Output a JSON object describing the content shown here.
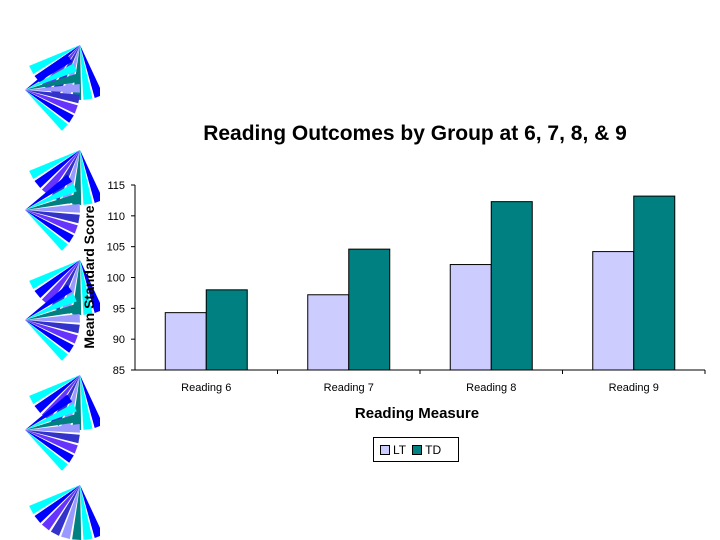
{
  "chart_data": {
    "type": "bar",
    "title": "Reading Outcomes by Group at 6, 7, 8, & 9",
    "xlabel": "Reading Measure",
    "ylabel": "Mean Standard Score",
    "categories": [
      "Reading 6",
      "Reading 7",
      "Reading 8",
      "Reading 9"
    ],
    "series": [
      {
        "name": "LT",
        "values": [
          94.3,
          97.2,
          102.1,
          104.2
        ],
        "color": "#ccccff"
      },
      {
        "name": "TD",
        "values": [
          98.0,
          104.6,
          112.3,
          113.2
        ],
        "color": "#008080"
      }
    ],
    "ylim": [
      85,
      115
    ],
    "yticks": [
      "115",
      "110",
      "105",
      "100",
      "95",
      "90",
      "85"
    ],
    "grid": false,
    "legend_position": "bottom"
  },
  "decoration": {
    "colors": [
      "#0000ff",
      "#00ffff",
      "#008080",
      "#9999ff",
      "#3333cc",
      "#6633ff"
    ]
  }
}
